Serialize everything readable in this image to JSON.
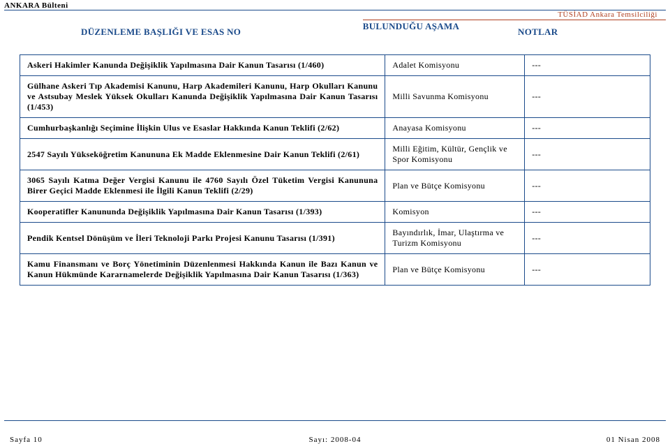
{
  "header": {
    "top_left": "ANKARA Bülteni",
    "top_right": "TÜSİAD Ankara Temsilciliği",
    "col1": "DÜZENLEME BAŞLIĞI VE ESAS NO",
    "col2": "BULUNDUĞU AŞAMA",
    "col3": "NOTLAR"
  },
  "rows": [
    {
      "title": "Askeri Hakimler Kanunda Değişiklik Yapılmasına Dair Kanun Tasarısı (1/460)",
      "stage": "Adalet Komisyonu",
      "note": "---"
    },
    {
      "title": "Gülhane Askeri Tıp Akademisi Kanunu, Harp Akademileri Kanunu, Harp Okulları Kanunu ve Astsubay Meslek Yüksek Okulları Kanunda Değişiklik Yapılmasına Dair Kanun Tasarısı (1/453)",
      "stage": "Milli Savunma Komisyonu",
      "note": "---"
    },
    {
      "title": "Cumhurbaşkanlığı Seçimine İlişkin Ulus ve Esaslar Hakkında Kanun Teklifi (2/62)",
      "stage": "Anayasa Komisyonu",
      "note": "---"
    },
    {
      "title": "2547 Sayılı Yükseköğretim Kanununa Ek Madde Eklenmesine Dair Kanun Teklifi (2/61)",
      "stage": "Milli Eğitim, Kültür, Gençlik ve Spor Komisyonu",
      "note": "---"
    },
    {
      "title": "3065 Sayılı Katma Değer Vergisi Kanunu ile 4760 Sayılı Özel Tüketim Vergisi Kanununa Birer Geçici Madde Eklenmesi ile İlgili Kanun Teklifi (2/29)",
      "stage": "Plan ve Bütçe Komisyonu",
      "note": "---"
    },
    {
      "title": "Kooperatifler Kanununda Değişiklik Yapılmasına Dair Kanun Tasarısı (1/393)",
      "stage": "Komisyon",
      "note": "---"
    },
    {
      "title": "Pendik Kentsel Dönüşüm ve İleri Teknoloji Parkı Projesi Kanunu Tasarısı (1/391)",
      "stage": "Bayındırlık, İmar, Ulaştırma ve Turizm Komisyonu",
      "note": "---"
    },
    {
      "title": "Kamu Finansmanı ve Borç Yönetiminin Düzenlenmesi Hakkında Kanun ile Bazı Kanun ve Kanun Hükmünde Kararnamelerde Değişiklik Yapılmasına Dair Kanun Tasarısı (1/363)",
      "stage": "Plan ve Bütçe Komisyonu",
      "note": "---"
    }
  ],
  "footer": {
    "left": "Sayfa 10",
    "center": "Sayı: 2008-04",
    "right": "01 Nisan 2008"
  },
  "colors": {
    "blue": "#1a4a8a",
    "rust": "#b04020",
    "black": "#000000",
    "bg": "#ffffff"
  }
}
